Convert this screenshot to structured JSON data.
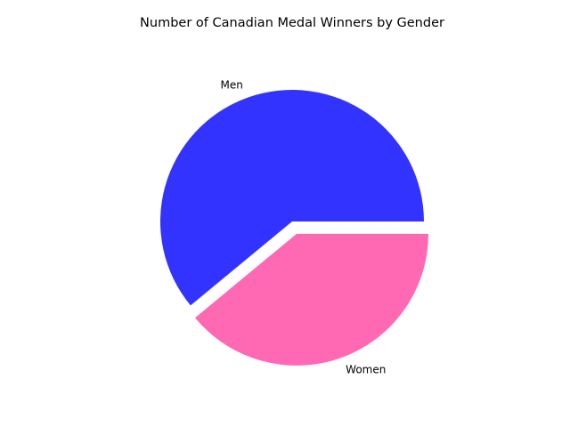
{
  "chart_data": {
    "type": "pie",
    "title": "Number of Canadian Medal Winners by Gender",
    "slices": [
      {
        "label": "Men",
        "value": 61,
        "color": "#3333ff",
        "explode": false
      },
      {
        "label": "Women",
        "value": 39,
        "color": "#ff69b4",
        "explode": true
      }
    ],
    "start_angle_deg": 0,
    "direction": "counterclockwise",
    "legend": "none"
  }
}
